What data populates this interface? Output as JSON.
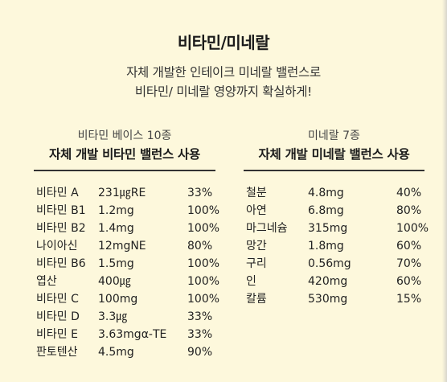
{
  "title": "비타민/미네랄",
  "subtitle": [
    "자체 개발한 인테이크 미네랄 밸런스로",
    "비타민/ 미네랄 영양까지 확실하게!"
  ],
  "vitamins": {
    "header_small": "비타민 베이스 10종",
    "header_big": "자체 개발 비타민 밸런스 사용",
    "rows": [
      {
        "name": "비타민 A",
        "amount": "231㎍RE",
        "percent": "33%"
      },
      {
        "name": "비타민 B1",
        "amount": "1.2mg",
        "percent": "100%"
      },
      {
        "name": "비타민 B2",
        "amount": "1.4mg",
        "percent": "100%"
      },
      {
        "name": "나이아신",
        "amount": "12mgNE",
        "percent": "80%"
      },
      {
        "name": "비타민 B6",
        "amount": "1.5mg",
        "percent": "100%"
      },
      {
        "name": "엽산",
        "amount": "400㎍",
        "percent": "100%"
      },
      {
        "name": "비타민 C",
        "amount": "100mg",
        "percent": "100%"
      },
      {
        "name": "비타민 D",
        "amount": "3.3㎍",
        "percent": "33%"
      },
      {
        "name": "비타민 E",
        "amount": "3.63mgα-TE",
        "percent": "33%"
      },
      {
        "name": "판토텐산",
        "amount": "4.5mg",
        "percent": "90%"
      }
    ]
  },
  "minerals": {
    "header_small": "미네랄 7종",
    "header_big": "자체 개발 미네랄 밸런스 사용",
    "rows": [
      {
        "name": "철분",
        "amount": "4.8mg",
        "percent": "40%"
      },
      {
        "name": "아연",
        "amount": "6.8mg",
        "percent": "80%"
      },
      {
        "name": "마그네슘",
        "amount": "315mg",
        "percent": "100%"
      },
      {
        "name": "망간",
        "amount": "1.8mg",
        "percent": "60%"
      },
      {
        "name": "구리",
        "amount": "0.56mg",
        "percent": "70%"
      },
      {
        "name": "인",
        "amount": "420mg",
        "percent": "60%"
      },
      {
        "name": "칼륨",
        "amount": "530mg",
        "percent": "15%"
      }
    ]
  }
}
